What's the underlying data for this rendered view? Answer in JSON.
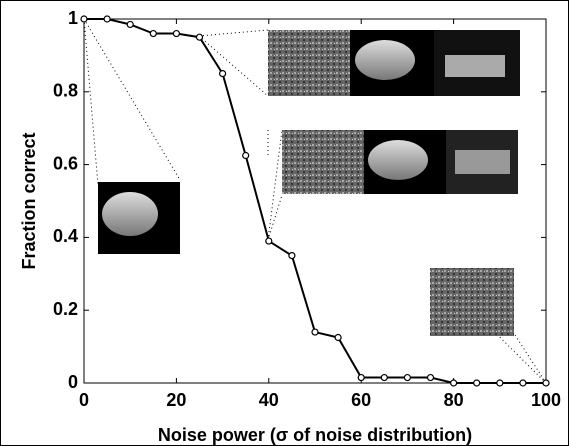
{
  "chart_data": {
    "type": "line",
    "xlabel": "Noise power (σ of noise distribution)",
    "ylabel": "Fraction correct",
    "x": [
      0,
      5,
      10,
      15,
      20,
      25,
      30,
      35,
      40,
      45,
      50,
      55,
      60,
      65,
      70,
      75,
      80,
      85,
      90,
      95,
      100
    ],
    "series": [
      {
        "color": "#000000",
        "values": [
          1.0,
          1.0,
          0.985,
          0.96,
          0.96,
          0.95,
          0.85,
          0.625,
          0.39,
          0.35,
          0.14,
          0.125,
          0.015,
          0.015,
          0.015,
          0.015,
          0,
          0,
          0,
          0,
          0
        ]
      }
    ],
    "xlim": [
      0,
      100
    ],
    "ylim": [
      0,
      1
    ],
    "xticks": [
      0,
      20,
      40,
      60,
      80,
      100
    ],
    "yticks": [
      0,
      0.2,
      0.4,
      0.6,
      0.8,
      1
    ],
    "grid": false
  }
}
